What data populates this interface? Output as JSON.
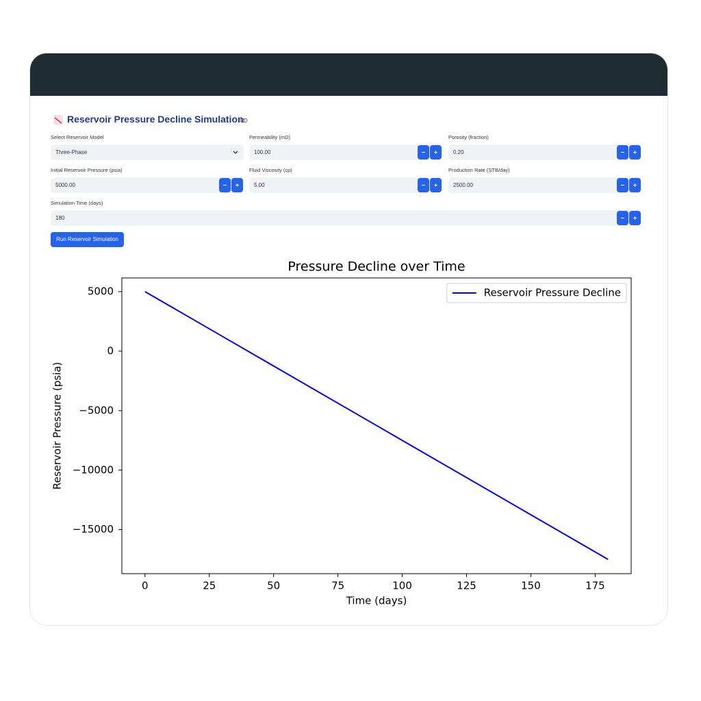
{
  "header": {
    "title": "Reservoir Pressure Decline Simulation"
  },
  "form": {
    "fields": [
      {
        "label": "Select Reservoir Model",
        "value": "Three-Phase",
        "kind": "select"
      },
      {
        "label": "Permeability (mD)",
        "value": "100.00",
        "kind": "number"
      },
      {
        "label": "Porosity (fraction)",
        "value": "0.20",
        "kind": "number"
      },
      {
        "label": "Initial Reservoir Pressure (psia)",
        "value": "5000.00",
        "kind": "number"
      },
      {
        "label": "Fluid Viscosity (cp)",
        "value": "5.00",
        "kind": "number"
      },
      {
        "label": "Production Rate (STB/day)",
        "value": "2500.00",
        "kind": "number"
      },
      {
        "label": "Simulation Time (days)",
        "value": "180",
        "kind": "number"
      }
    ],
    "button": "Run Reservoir Simulation"
  },
  "chart_data": {
    "type": "line",
    "title": "Pressure Decline over Time",
    "xlabel": "Time (days)",
    "ylabel": "Reservoir Pressure (psia)",
    "x": [
      0,
      30,
      60,
      90,
      120,
      150,
      180
    ],
    "series": [
      {
        "name": "Reservoir Pressure Decline",
        "color": "#0000ff",
        "values": [
          5000,
          1250,
          -2500,
          -6250,
          -10000,
          -13750,
          -17500
        ]
      }
    ],
    "xlim": [
      -9,
      189
    ],
    "ylim": [
      -18700,
      6150
    ],
    "xticks": [
      0,
      25,
      50,
      75,
      100,
      125,
      150,
      175
    ],
    "yticks": [
      5000,
      0,
      {
        "value": -5000,
        "label": "−5000"
      },
      {
        "value": -10000,
        "label": "−10000"
      },
      {
        "value": -15000,
        "label": "−15000"
      }
    ],
    "legend": "upper right"
  }
}
